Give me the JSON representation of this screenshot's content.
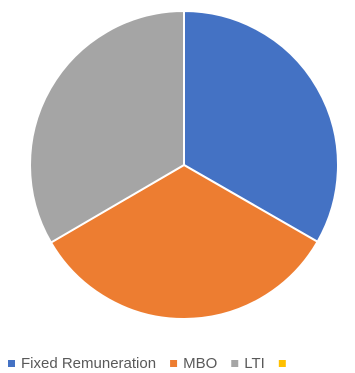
{
  "chart_data": {
    "type": "pie",
    "title": "",
    "categories": [
      "Fixed Remuneration",
      "MBO",
      "LTI",
      ""
    ],
    "values": [
      33.3,
      33.3,
      33.4,
      0
    ],
    "colors": [
      "#4472C4",
      "#ED7D31",
      "#A5A5A5",
      "#FFC000"
    ],
    "start_angle_deg": 0,
    "direction": "clockwise",
    "legend_position": "bottom",
    "legend_truncated": true
  }
}
